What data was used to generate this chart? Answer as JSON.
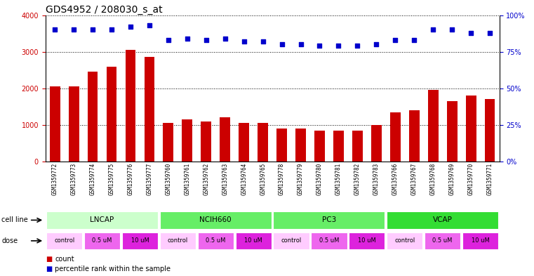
{
  "title": "GDS4952 / 208030_s_at",
  "samples": [
    "GSM1359772",
    "GSM1359773",
    "GSM1359774",
    "GSM1359775",
    "GSM1359776",
    "GSM1359777",
    "GSM1359760",
    "GSM1359761",
    "GSM1359762",
    "GSM1359763",
    "GSM1359764",
    "GSM1359765",
    "GSM1359778",
    "GSM1359779",
    "GSM1359780",
    "GSM1359781",
    "GSM1359782",
    "GSM1359783",
    "GSM1359766",
    "GSM1359767",
    "GSM1359768",
    "GSM1359769",
    "GSM1359770",
    "GSM1359771"
  ],
  "counts": [
    2050,
    2050,
    2450,
    2600,
    3050,
    2850,
    1050,
    1150,
    1100,
    1200,
    1050,
    1050,
    900,
    900,
    850,
    850,
    850,
    1000,
    1350,
    1400,
    1950,
    1650,
    1800,
    1700
  ],
  "percentile_ranks": [
    90,
    90,
    90,
    90,
    92,
    93,
    83,
    84,
    83,
    84,
    82,
    82,
    80,
    80,
    79,
    79,
    79,
    80,
    83,
    83,
    90,
    90,
    88,
    88
  ],
  "bar_color": "#cc0000",
  "dot_color": "#0000cc",
  "cell_lines": [
    {
      "name": "LNCAP",
      "start": 0,
      "end": 6,
      "color": "#ccffcc"
    },
    {
      "name": "NCIH660",
      "start": 6,
      "end": 12,
      "color": "#66ee66"
    },
    {
      "name": "PC3",
      "start": 12,
      "end": 18,
      "color": "#66ee66"
    },
    {
      "name": "VCAP",
      "start": 18,
      "end": 24,
      "color": "#33dd33"
    }
  ],
  "doses": [
    {
      "label": "control",
      "start": 0,
      "end": 2,
      "color": "#ffccff"
    },
    {
      "label": "0.5 uM",
      "start": 2,
      "end": 4,
      "color": "#ee66ee"
    },
    {
      "label": "10 uM",
      "start": 4,
      "end": 6,
      "color": "#dd22dd"
    },
    {
      "label": "control",
      "start": 6,
      "end": 8,
      "color": "#ffccff"
    },
    {
      "label": "0.5 uM",
      "start": 8,
      "end": 10,
      "color": "#ee66ee"
    },
    {
      "label": "10 uM",
      "start": 10,
      "end": 12,
      "color": "#dd22dd"
    },
    {
      "label": "control",
      "start": 12,
      "end": 14,
      "color": "#ffccff"
    },
    {
      "label": "0.5 uM",
      "start": 14,
      "end": 16,
      "color": "#ee66ee"
    },
    {
      "label": "10 uM",
      "start": 16,
      "end": 18,
      "color": "#dd22dd"
    },
    {
      "label": "control",
      "start": 18,
      "end": 20,
      "color": "#ffccff"
    },
    {
      "label": "0.5 uM",
      "start": 20,
      "end": 22,
      "color": "#ee66ee"
    },
    {
      "label": "10 uM",
      "start": 22,
      "end": 24,
      "color": "#dd22dd"
    }
  ],
  "ylim_left": [
    0,
    4000
  ],
  "ylim_right": [
    0,
    100
  ],
  "yticks_left": [
    0,
    1000,
    2000,
    3000,
    4000
  ],
  "yticks_right": [
    0,
    25,
    50,
    75,
    100
  ],
  "ytick_labels_right": [
    "0%",
    "25%",
    "50%",
    "75%",
    "100%"
  ],
  "background_color": "#ffffff",
  "plot_bg_color": "#ffffff",
  "xticklabel_bg": "#dddddd",
  "cell_line_bg": "#dddddd",
  "dose_bg": "#dddddd",
  "grid_color": "#000000",
  "label_fontsize": 7,
  "tick_fontsize": 7,
  "title_fontsize": 10,
  "legend_square_size": 7
}
